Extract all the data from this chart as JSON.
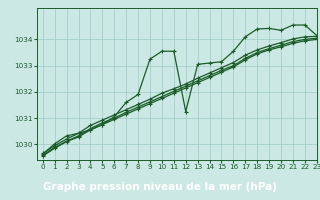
{
  "title": "Graphe pression niveau de la mer (hPa)",
  "xlabel_ticks": [
    0,
    1,
    2,
    3,
    4,
    5,
    6,
    7,
    8,
    9,
    10,
    11,
    12,
    13,
    14,
    15,
    16,
    17,
    18,
    19,
    20,
    21,
    22,
    23
  ],
  "ylim": [
    1029.4,
    1035.2
  ],
  "yticks": [
    1030,
    1031,
    1032,
    1033,
    1034
  ],
  "xlim": [
    -0.5,
    23
  ],
  "bg_color": "#cce8e4",
  "grid_color": "#9eccc6",
  "line_color": "#1a5c28",
  "series": [
    [
      1029.62,
      1030.02,
      1030.32,
      1030.42,
      1030.55,
      1030.75,
      1031.05,
      1031.6,
      1031.9,
      1033.25,
      1033.55,
      1033.55,
      1031.25,
      1033.05,
      1033.1,
      1033.15,
      1033.55,
      1034.1,
      1034.4,
      1034.42,
      1034.35,
      1034.55,
      1034.55,
      1034.15
    ],
    [
      1029.65,
      1029.95,
      1030.2,
      1030.42,
      1030.72,
      1030.92,
      1031.12,
      1031.32,
      1031.52,
      1031.72,
      1031.95,
      1032.12,
      1032.3,
      1032.52,
      1032.72,
      1032.92,
      1033.12,
      1033.4,
      1033.6,
      1033.75,
      1033.88,
      1034.02,
      1034.1,
      1034.12
    ],
    [
      1029.58,
      1029.88,
      1030.12,
      1030.32,
      1030.6,
      1030.82,
      1031.0,
      1031.22,
      1031.42,
      1031.62,
      1031.82,
      1032.02,
      1032.22,
      1032.42,
      1032.62,
      1032.82,
      1033.0,
      1033.28,
      1033.5,
      1033.65,
      1033.78,
      1033.92,
      1034.0,
      1034.05
    ],
    [
      1029.55,
      1029.85,
      1030.1,
      1030.28,
      1030.55,
      1030.75,
      1030.95,
      1031.15,
      1031.35,
      1031.55,
      1031.75,
      1031.95,
      1032.15,
      1032.35,
      1032.55,
      1032.75,
      1032.95,
      1033.22,
      1033.45,
      1033.6,
      1033.72,
      1033.85,
      1033.95,
      1034.0
    ]
  ],
  "marker": "+",
  "markersize": 3.5,
  "linewidth": 0.9,
  "title_fontsize": 7.5,
  "tick_fontsize": 5.2,
  "tick_color": "#1a5c28",
  "title_fg": "white",
  "title_bg": "#2d7a3a",
  "title_bar_height": 0.13
}
